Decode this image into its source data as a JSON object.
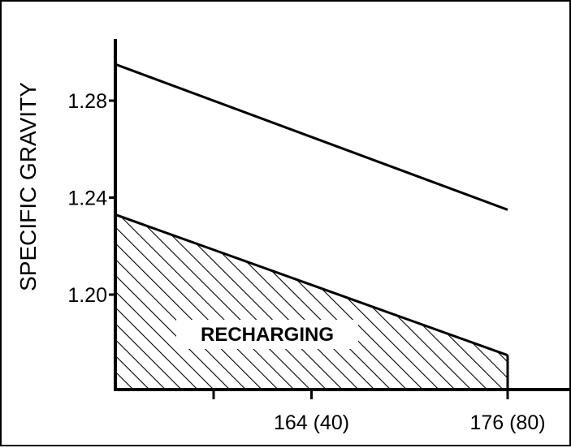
{
  "chart_data": {
    "type": "area",
    "title": "",
    "xlabel": "",
    "ylabel": "SPECIFIC GRAVITY",
    "x_ticks": [
      {
        "x": 164,
        "label": "164 (40)"
      },
      {
        "x": 176,
        "label": "176 (80)"
      }
    ],
    "y_ticks": [
      {
        "y": 1.2,
        "label": "1.20"
      },
      {
        "y": 1.24,
        "label": "1.24"
      },
      {
        "y": 1.28,
        "label": "1.28"
      }
    ],
    "xlim": [
      152,
      182
    ],
    "ylim": [
      1.165,
      1.29
    ],
    "upper_line": [
      [
        152,
        1.295
      ],
      [
        176,
        1.235
      ]
    ],
    "recharging_boundary": [
      [
        152,
        1.233
      ],
      [
        176,
        1.175
      ]
    ],
    "region_label": "RECHARGING",
    "grid": false,
    "colors": {
      "line": "#000000",
      "hatch": "#000000",
      "background": "#ffffff"
    }
  }
}
